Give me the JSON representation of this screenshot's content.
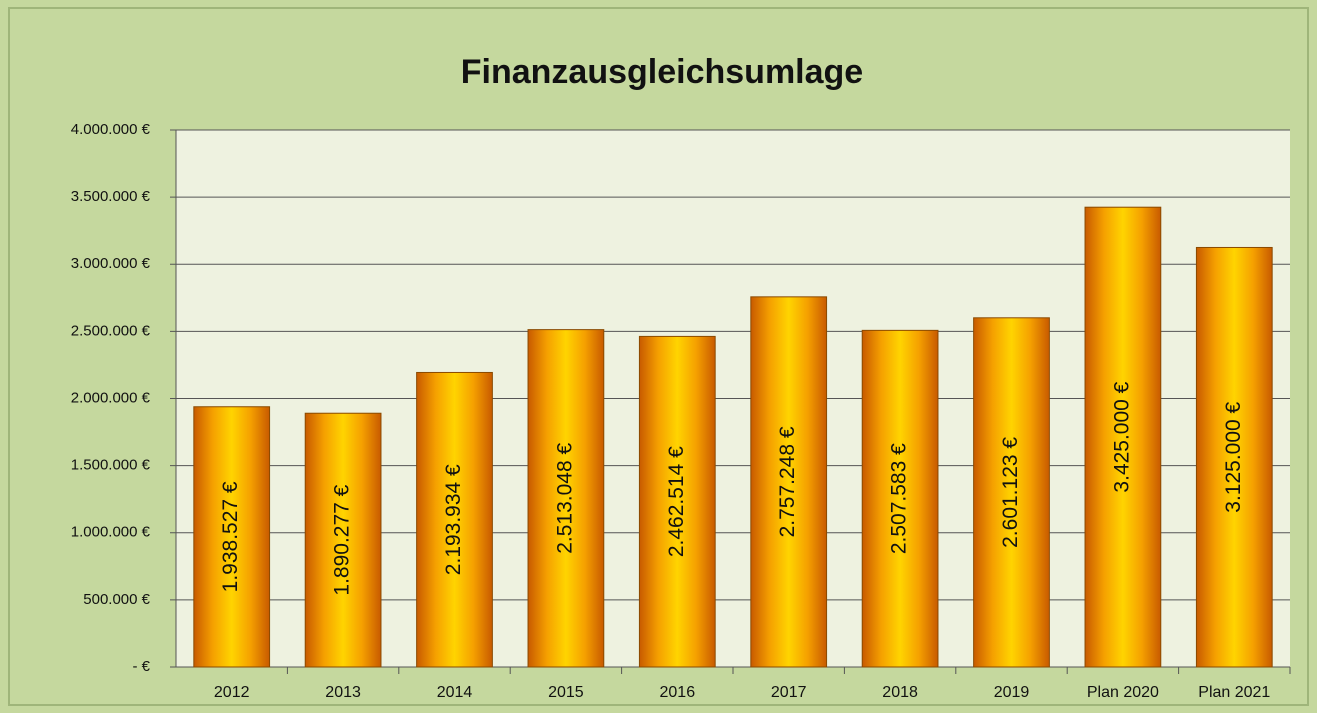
{
  "chart_data": {
    "type": "bar",
    "title": "Finanzausgleichsumlage",
    "categories": [
      "2012",
      "2013",
      "2014",
      "2015",
      "2016",
      "2017",
      "2018",
      "2019",
      "Plan 2020",
      "Plan 2021"
    ],
    "values": [
      1938527,
      1890277,
      2193934,
      2513048,
      2462514,
      2757248,
      2507583,
      2601123,
      3425000,
      3125000
    ],
    "value_labels": [
      "1.938.527 €",
      "1.890.277 €",
      "2.193.934 €",
      "2.513.048 €",
      "2.462.514 €",
      "2.757.248 €",
      "2.507.583 €",
      "2.601.123 €",
      "3.425.000 €",
      "3.125.000 €"
    ],
    "color": "#f29a0c",
    "ylim": [
      0,
      4000000
    ],
    "yticks": [
      {
        "value": 0,
        "label": "-   €"
      },
      {
        "value": 500000,
        "label": "500.000 €"
      },
      {
        "value": 1000000,
        "label": "1.000.000 €"
      },
      {
        "value": 1500000,
        "label": "1.500.000 €"
      },
      {
        "value": 2000000,
        "label": "2.000.000 €"
      },
      {
        "value": 2500000,
        "label": "2.500.000 €"
      },
      {
        "value": 3000000,
        "label": "3.000.000 €"
      },
      {
        "value": 3500000,
        "label": "3.500.000 €"
      },
      {
        "value": 4000000,
        "label": "4.000.000 €"
      }
    ],
    "grid": true
  }
}
